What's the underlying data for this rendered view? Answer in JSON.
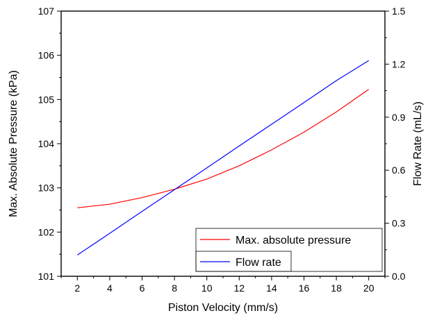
{
  "chart_data": {
    "type": "line",
    "title": "",
    "xlabel": "Piston Velocity (mm/s)",
    "ylabel_left": "Max. Absolute Pressure (kPa)",
    "ylabel_right": "Flow Rate (mL/s)",
    "xlim": [
      1,
      21
    ],
    "ylim_left": [
      101,
      107
    ],
    "ylim_right": [
      0.0,
      1.5
    ],
    "x_ticks": [
      "2",
      "4",
      "6",
      "8",
      "10",
      "12",
      "14",
      "16",
      "18",
      "20"
    ],
    "y_left_ticks": [
      "101",
      "102",
      "103",
      "104",
      "105",
      "106",
      "107"
    ],
    "y_right_ticks": [
      "0.0",
      "0.3",
      "0.6",
      "0.9",
      "1.2",
      "1.5"
    ],
    "grid": false,
    "legend_position": "bottom-right",
    "series": [
      {
        "name": "Max. absolute pressure",
        "axis": "left",
        "color": "#ff0000",
        "x": [
          2,
          4,
          6,
          8,
          10,
          12,
          14,
          16,
          18,
          20
        ],
        "y": [
          102.55,
          102.63,
          102.78,
          102.97,
          103.2,
          103.5,
          103.86,
          104.26,
          104.72,
          105.23
        ]
      },
      {
        "name": "Flow rate",
        "axis": "right",
        "color": "#0000ff",
        "x": [
          2,
          4,
          6,
          8,
          10,
          12,
          14,
          16,
          18,
          20
        ],
        "y": [
          0.12,
          0.243,
          0.367,
          0.49,
          0.613,
          0.737,
          0.86,
          0.983,
          1.107,
          1.22
        ]
      }
    ]
  }
}
